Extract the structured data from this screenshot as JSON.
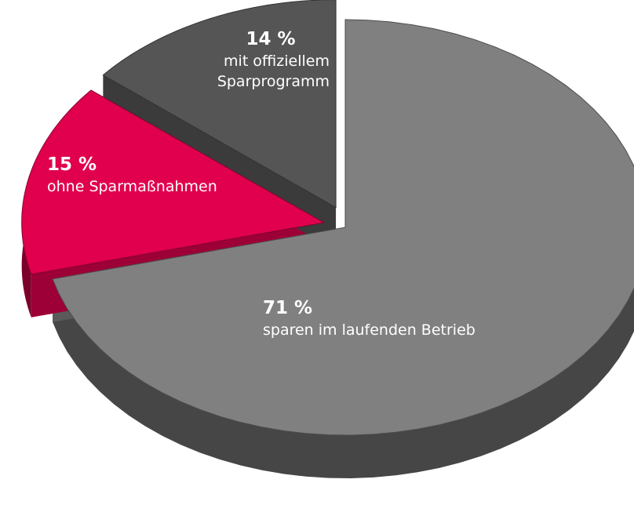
{
  "chart_data": {
    "type": "pie",
    "categories": [
      "sparen im laufenden Betrieb",
      "ohne Sparmaßnahmen",
      "mit offiziellem Sparprogramm"
    ],
    "values": [
      71,
      15,
      14
    ],
    "value_labels": [
      "71 %",
      "15 %",
      "14 %"
    ],
    "colors": [
      "#808080",
      "#e0004d",
      "#555555"
    ]
  }
}
